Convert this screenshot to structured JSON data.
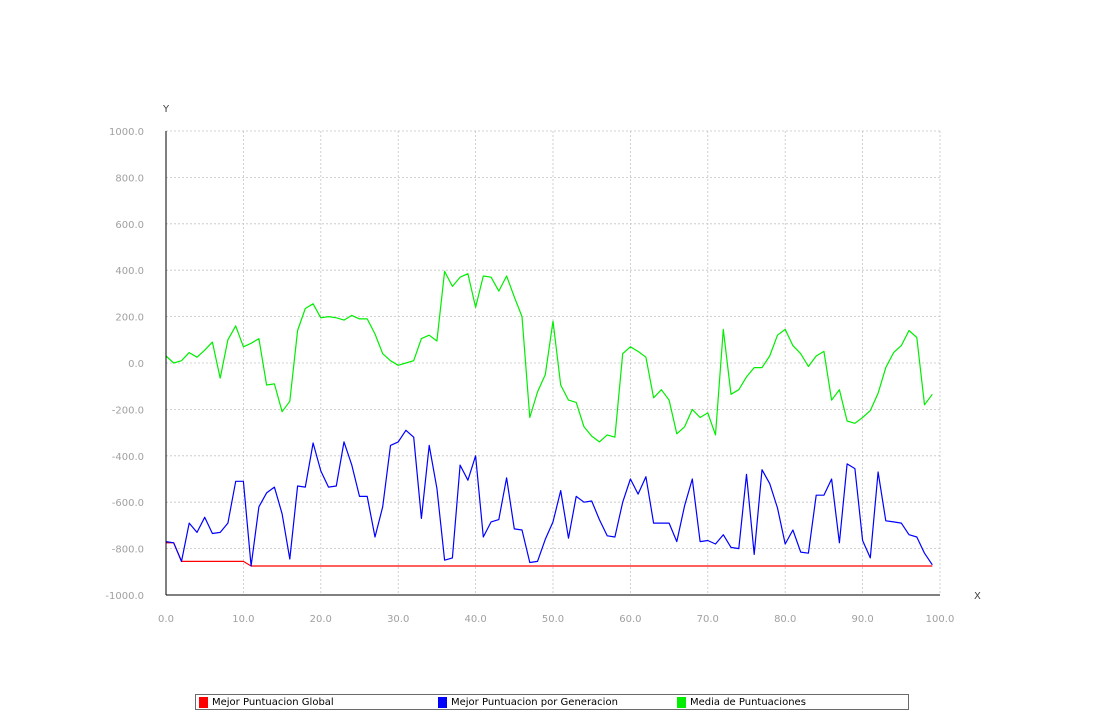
{
  "chart_data": {
    "type": "line",
    "xlabel": "X",
    "ylabel": "Y",
    "xlim": [
      0,
      100
    ],
    "ylim": [
      -1000,
      1000
    ],
    "xticks": [
      0,
      10,
      20,
      30,
      40,
      50,
      60,
      70,
      80,
      90,
      100
    ],
    "yticks": [
      -1000,
      -800,
      -600,
      -400,
      -200,
      0,
      200,
      400,
      600,
      800,
      1000
    ],
    "xtick_labels": [
      "0.0",
      "10.0",
      "20.0",
      "30.0",
      "40.0",
      "50.0",
      "60.0",
      "70.0",
      "80.0",
      "90.0",
      "100.0"
    ],
    "ytick_labels": [
      "-1000.0",
      "-800.0",
      "-600.0",
      "-400.0",
      "-200.0",
      "0.0",
      "200.0",
      "400.0",
      "600.0",
      "800.0",
      "1000.0"
    ],
    "grid": true,
    "legend_position": "bottom",
    "series": [
      {
        "name": "Mejor Puntuacion Global",
        "color": "#ff0000",
        "x": [
          0,
          1,
          2,
          3,
          4,
          5,
          6,
          7,
          8,
          9,
          10,
          11,
          12,
          20,
          30,
          40,
          50,
          60,
          70,
          80,
          90,
          99
        ],
        "y": [
          -775,
          -775,
          -855,
          -855,
          -855,
          -855,
          -855,
          -855,
          -855,
          -855,
          -855,
          -875,
          -875,
          -875,
          -875,
          -875,
          -875,
          -875,
          -875,
          -875,
          -875,
          -875
        ]
      },
      {
        "name": "Mejor Puntuacion por Generacion",
        "color": "#0000ff",
        "x": [
          0,
          1,
          2,
          3,
          4,
          5,
          6,
          7,
          8,
          9,
          10,
          11,
          12,
          13,
          14,
          15,
          16,
          17,
          18,
          19,
          20,
          21,
          22,
          23,
          24,
          25,
          26,
          27,
          28,
          29,
          30,
          31,
          32,
          33,
          34,
          35,
          36,
          37,
          38,
          39,
          40,
          41,
          42,
          43,
          44,
          45,
          46,
          47,
          48,
          49,
          50,
          51,
          52,
          53,
          54,
          55,
          56,
          57,
          58,
          59,
          60,
          61,
          62,
          63,
          64,
          65,
          66,
          67,
          68,
          69,
          70,
          71,
          72,
          73,
          74,
          75,
          76,
          77,
          78,
          79,
          80,
          81,
          82,
          83,
          84,
          85,
          86,
          87,
          88,
          89,
          90,
          91,
          92,
          93,
          94,
          95,
          96,
          97,
          98,
          99
        ],
        "y": [
          -770,
          -775,
          -855,
          -690,
          -730,
          -665,
          -735,
          -730,
          -690,
          -510,
          -510,
          -875,
          -620,
          -560,
          -535,
          -650,
          -845,
          -530,
          -535,
          -345,
          -465,
          -535,
          -530,
          -340,
          -440,
          -575,
          -575,
          -750,
          -620,
          -355,
          -340,
          -290,
          -320,
          -670,
          -355,
          -540,
          -850,
          -840,
          -440,
          -505,
          -400,
          -750,
          -685,
          -675,
          -495,
          -715,
          -720,
          -860,
          -855,
          -760,
          -685,
          -550,
          -755,
          -575,
          -600,
          -595,
          -675,
          -745,
          -750,
          -600,
          -500,
          -565,
          -490,
          -690,
          -690,
          -690,
          -770,
          -615,
          -500,
          -770,
          -765,
          -780,
          -740,
          -795,
          -800,
          -480,
          -825,
          -460,
          -520,
          -625,
          -780,
          -720,
          -815,
          -820,
          -570,
          -570,
          -500,
          -775,
          -435,
          -455,
          -765,
          -840,
          -470,
          -680,
          -685,
          -690,
          -740,
          -750,
          -820,
          -870
        ]
      },
      {
        "name": "Media de Puntuaciones",
        "color": "#00ee00",
        "x": [
          0,
          1,
          2,
          3,
          4,
          5,
          6,
          7,
          8,
          9,
          10,
          11,
          12,
          13,
          14,
          15,
          16,
          17,
          18,
          19,
          20,
          21,
          22,
          23,
          24,
          25,
          26,
          27,
          28,
          29,
          30,
          31,
          32,
          33,
          34,
          35,
          36,
          37,
          38,
          39,
          40,
          41,
          42,
          43,
          44,
          45,
          46,
          47,
          48,
          49,
          50,
          51,
          52,
          53,
          54,
          55,
          56,
          57,
          58,
          59,
          60,
          61,
          62,
          63,
          64,
          65,
          66,
          67,
          68,
          69,
          70,
          71,
          72,
          73,
          74,
          75,
          76,
          77,
          78,
          79,
          80,
          81,
          82,
          83,
          84,
          85,
          86,
          87,
          88,
          89,
          90,
          91,
          92,
          93,
          94,
          95,
          96,
          97,
          98,
          99
        ],
        "y": [
          30,
          0,
          10,
          45,
          25,
          55,
          90,
          -65,
          100,
          160,
          70,
          85,
          105,
          -95,
          -90,
          -210,
          -165,
          140,
          235,
          255,
          195,
          200,
          195,
          185,
          205,
          190,
          190,
          125,
          40,
          10,
          -10,
          0,
          10,
          105,
          120,
          95,
          395,
          330,
          370,
          385,
          240,
          375,
          370,
          310,
          375,
          285,
          200,
          -235,
          -125,
          -50,
          180,
          -95,
          -160,
          -170,
          -275,
          -315,
          -340,
          -310,
          -320,
          40,
          70,
          50,
          25,
          -150,
          -115,
          -160,
          -305,
          -275,
          -200,
          -235,
          -215,
          -310,
          145,
          -135,
          -115,
          -60,
          -20,
          -20,
          30,
          120,
          145,
          75,
          40,
          -15,
          30,
          50,
          -160,
          -115,
          -250,
          -260,
          -235,
          -205,
          -130,
          -20,
          45,
          75,
          140,
          110,
          -180,
          -135
        ]
      }
    ]
  }
}
